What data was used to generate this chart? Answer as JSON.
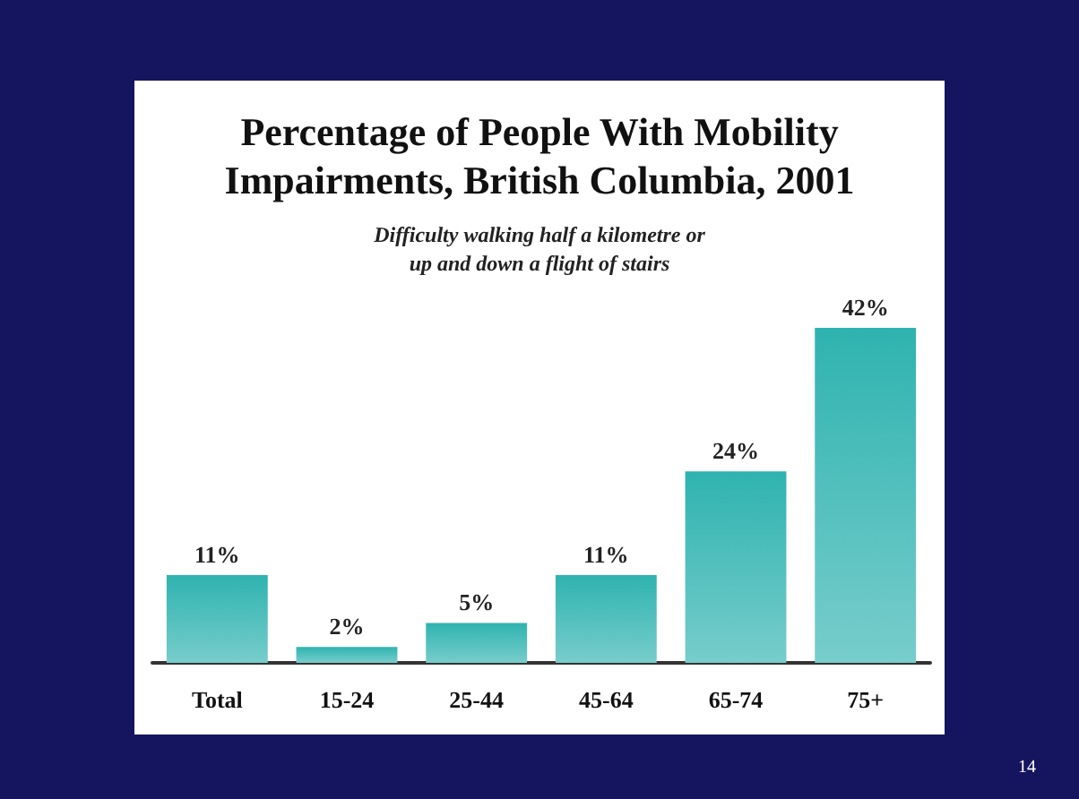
{
  "chart_data": {
    "type": "bar",
    "title": "Percentage of People With Mobility\nImpairments, British Columbia, 2001",
    "subtitle": "Difficulty walking half a kilometre or\nup and down a flight of stairs",
    "categories": [
      "Total",
      "15-24",
      "25-44",
      "45-64",
      "65-74",
      "75+"
    ],
    "values": [
      11,
      2,
      5,
      11,
      24,
      42
    ],
    "value_labels": [
      "11%",
      "2%",
      "5%",
      "11%",
      "24%",
      "42%"
    ],
    "color": "#2fb3b0",
    "annotations": [
      "14"
    ]
  }
}
